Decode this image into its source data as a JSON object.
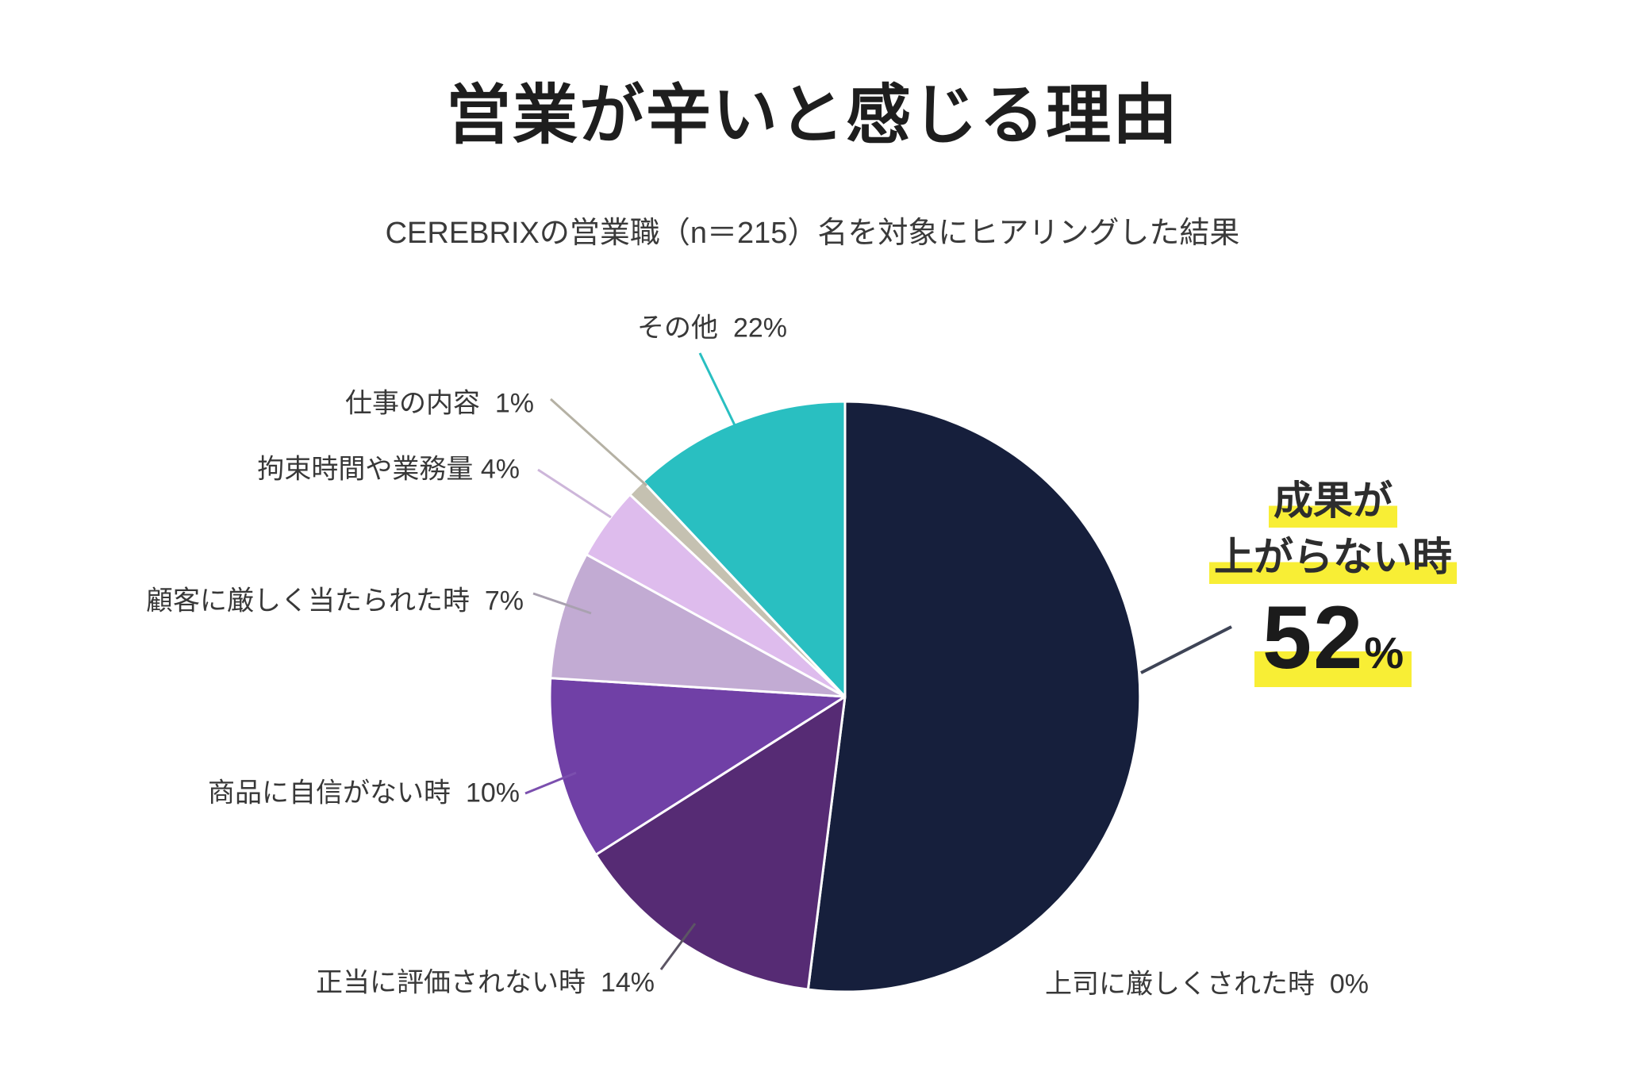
{
  "title": "営業が辛いと感じる理由",
  "subtitle": "CEREBRIXの営業職（n＝215）名を対象にヒアリングした結果",
  "colors": {
    "background": "#ffffff",
    "highlight_yellow": "#f8ee35",
    "separator_white": "#ffffff",
    "title_text": "#1e1e1e",
    "label_text": "#383838"
  },
  "chart_data": {
    "type": "pie",
    "title": "営業が辛いと感じる理由",
    "subtitle": "CEREBRIXの営業職（n＝215）名を対象にヒアリングした結果",
    "unit": "%",
    "direction": "clockwise",
    "start_angle_deg": 0,
    "last_slice_fills_remainder": true,
    "legend_position": "callout-labels",
    "slices": [
      {
        "label": "成果が上がらない時",
        "value": 52,
        "color": "#161f3c",
        "leader_color": "#3e4456",
        "highlighted": true
      },
      {
        "label": "上司に厳しくされた時",
        "value": 0,
        "color": "#ffffff"
      },
      {
        "label": "正当に評価されない時",
        "value": 14,
        "color": "#562b74",
        "leader_color": "#5c5564"
      },
      {
        "label": "商品に自信がない時",
        "value": 10,
        "color": "#7040a6",
        "leader_color": "#7b4fae"
      },
      {
        "label": "顧客に厳しく当たられた時",
        "value": 7,
        "color": "#c2abd3",
        "leader_color": "#a9a1b0"
      },
      {
        "label": "拘束時間や業務量",
        "value": 4,
        "color": "#debced",
        "leader_color": "#cdb6da"
      },
      {
        "label": "仕事の内容",
        "value": 1,
        "color": "#c5c1b1",
        "leader_color": "#b5b1a4"
      },
      {
        "label": "その他",
        "value": 22,
        "color": "#29bfc1",
        "leader_color": "#29bfc1"
      }
    ]
  },
  "callouts": {
    "sonota": "その他  22%",
    "shigoto": "仕事の内容  1%",
    "kousoku": "拘束時間や業務量 4%",
    "kokyaku": "顧客に厳しく当たられた時  7%",
    "shouhin": "商品に自信がない時  10%",
    "seitou": "正当に評価されない時  14%",
    "joushi": "上司に厳しくされた時  0%",
    "seika": {
      "line1": "成果が",
      "line2": "上がらない時",
      "value": "52",
      "unit": "%"
    }
  }
}
